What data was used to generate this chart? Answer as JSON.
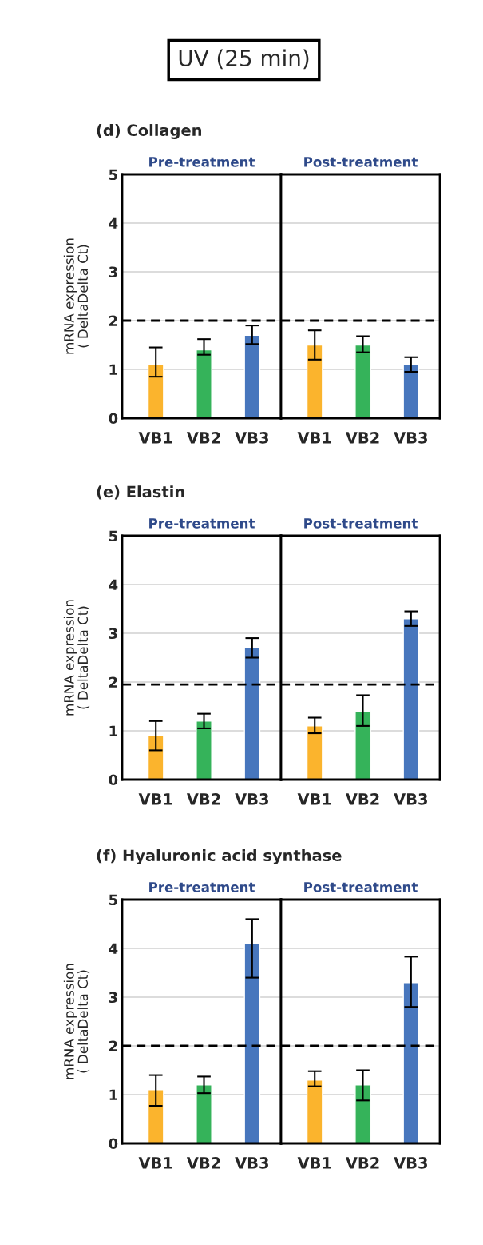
{
  "chart_data": [
    {
      "type": "bar",
      "annotations": [
        "UV (25 min)"
      ],
      "title": "(d) Collagen",
      "subtitle": "Pre-treatment",
      "ylabel": "mRNA expression\n( DeltaDelta Ct)",
      "categories": [
        "VB1",
        "VB2",
        "VB3"
      ],
      "values": [
        1.1,
        1.4,
        1.7
      ],
      "colors": [
        "#fbb42d",
        "#35b35a",
        "#4776bd"
      ],
      "errors": [
        [
          0.85,
          1.45
        ],
        [
          1.3,
          1.62
        ],
        [
          1.52,
          1.9
        ]
      ],
      "ylim": [
        0,
        5
      ],
      "yticks": [
        0,
        1,
        2,
        3,
        4,
        5
      ],
      "grid": "y",
      "ref_lines": [
        {
          "axis": "y",
          "value": 2,
          "color": "#000000",
          "line_style": "dashed"
        }
      ]
    },
    {
      "type": "bar",
      "subtitle": "Post-treatment",
      "categories": [
        "VB1",
        "VB2",
        "VB3"
      ],
      "values": [
        1.5,
        1.5,
        1.1
      ],
      "colors": [
        "#fbb42d",
        "#35b35a",
        "#4776bd"
      ],
      "errors": [
        [
          1.2,
          1.8
        ],
        [
          1.35,
          1.68
        ],
        [
          0.95,
          1.25
        ]
      ],
      "ylim": [
        0,
        5
      ],
      "yticks": [
        0,
        1,
        2,
        3,
        4,
        5
      ],
      "grid": "y",
      "tick_labels": "x",
      "ref_lines": [
        {
          "axis": "y",
          "value": 2,
          "color": "#000000",
          "line_style": "dashed"
        }
      ]
    },
    {
      "type": "bar",
      "title": "(e) Elastin",
      "subtitle": "Pre-treatment",
      "ylabel": "mRNA expression\n( DeltaDelta Ct)",
      "categories": [
        "VB1",
        "VB2",
        "VB3"
      ],
      "values": [
        0.9,
        1.2,
        2.7
      ],
      "colors": [
        "#fbb42d",
        "#35b35a",
        "#4776bd"
      ],
      "errors": [
        [
          0.6,
          1.2
        ],
        [
          1.05,
          1.35
        ],
        [
          2.5,
          2.9
        ]
      ],
      "ylim": [
        0,
        5
      ],
      "yticks": [
        0,
        1,
        2,
        3,
        4,
        5
      ],
      "grid": "y",
      "ref_lines": [
        {
          "axis": "y",
          "value": 1.95,
          "color": "#000000",
          "line_style": "dashed"
        }
      ]
    },
    {
      "type": "bar",
      "subtitle": "Post-treatment",
      "categories": [
        "VB1",
        "VB2",
        "VB3"
      ],
      "values": [
        1.1,
        1.4,
        3.3
      ],
      "colors": [
        "#fbb42d",
        "#35b35a",
        "#4776bd"
      ],
      "errors": [
        [
          0.95,
          1.27
        ],
        [
          1.1,
          1.73
        ],
        [
          3.15,
          3.45
        ]
      ],
      "ylim": [
        0,
        5
      ],
      "yticks": [
        0,
        1,
        2,
        3,
        4,
        5
      ],
      "grid": "y",
      "tick_labels": "x",
      "ref_lines": [
        {
          "axis": "y",
          "value": 1.95,
          "color": "#000000",
          "line_style": "dashed"
        }
      ]
    },
    {
      "type": "bar",
      "title": "(f) Hyaluronic acid synthase",
      "subtitle": "Pre-treatment",
      "ylabel": "mRNA expression\n( DeltaDelta Ct)",
      "categories": [
        "VB1",
        "VB2",
        "VB3"
      ],
      "values": [
        1.1,
        1.2,
        4.1
      ],
      "colors": [
        "#fbb42d",
        "#35b35a",
        "#4776bd"
      ],
      "errors": [
        [
          0.77,
          1.4
        ],
        [
          1.03,
          1.37
        ],
        [
          3.4,
          4.6
        ]
      ],
      "ylim": [
        0,
        5
      ],
      "yticks": [
        0,
        1,
        2,
        3,
        4,
        5
      ],
      "grid": "y",
      "ref_lines": [
        {
          "axis": "y",
          "value": 2,
          "color": "#000000",
          "line_style": "dashed"
        }
      ]
    },
    {
      "type": "bar",
      "subtitle": "Post-treatment",
      "categories": [
        "VB1",
        "VB2",
        "VB3"
      ],
      "values": [
        1.3,
        1.2,
        3.3
      ],
      "colors": [
        "#fbb42d",
        "#35b35a",
        "#4776bd"
      ],
      "errors": [
        [
          1.17,
          1.48
        ],
        [
          0.88,
          1.5
        ],
        [
          2.8,
          3.83
        ]
      ],
      "ylim": [
        0,
        5
      ],
      "yticks": [
        0,
        1,
        2,
        3,
        4,
        5
      ],
      "grid": "y",
      "tick_labels": "x",
      "ref_lines": [
        {
          "axis": "y",
          "value": 2,
          "color": "#000000",
          "line_style": "dashed"
        }
      ]
    }
  ]
}
